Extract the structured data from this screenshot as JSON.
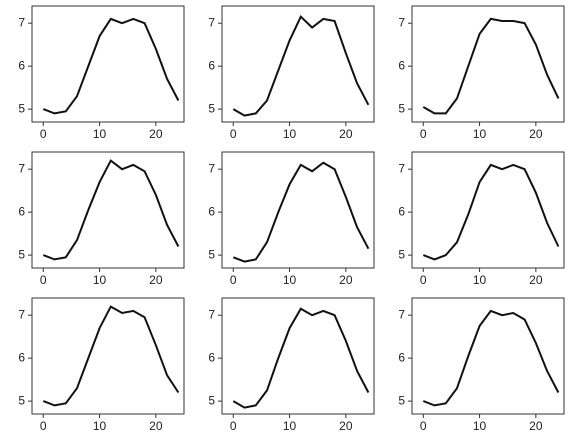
{
  "chart_data": [
    {
      "type": "line",
      "x": [
        0,
        2,
        4,
        6,
        8,
        10,
        12,
        14,
        16,
        18,
        20,
        22,
        24
      ],
      "y": [
        5.0,
        4.9,
        4.95,
        5.3,
        6.0,
        6.7,
        7.1,
        7.0,
        7.1,
        7.0,
        6.4,
        5.7,
        5.2
      ],
      "color": "#111111",
      "xlim": [
        -2,
        25
      ],
      "ylim": [
        4.7,
        7.4
      ],
      "xticks": [
        0,
        10,
        20
      ],
      "yticks": [
        5,
        6,
        7
      ]
    },
    {
      "type": "line",
      "x": [
        0,
        2,
        4,
        6,
        8,
        10,
        12,
        14,
        16,
        18,
        20,
        22,
        24
      ],
      "y": [
        5.0,
        4.85,
        4.9,
        5.2,
        5.9,
        6.6,
        7.15,
        6.9,
        7.1,
        7.05,
        6.3,
        5.6,
        5.1
      ],
      "color": "#111111",
      "xlim": [
        -2,
        25
      ],
      "ylim": [
        4.7,
        7.4
      ],
      "xticks": [
        0,
        10,
        20
      ],
      "yticks": [
        5,
        6,
        7
      ]
    },
    {
      "type": "line",
      "x": [
        0,
        2,
        4,
        6,
        8,
        10,
        12,
        14,
        16,
        18,
        20,
        22,
        24
      ],
      "y": [
        5.05,
        4.9,
        4.9,
        5.25,
        6.0,
        6.75,
        7.1,
        7.05,
        7.05,
        7.0,
        6.5,
        5.8,
        5.25
      ],
      "color": "#111111",
      "xlim": [
        -2,
        25
      ],
      "ylim": [
        4.7,
        7.4
      ],
      "xticks": [
        0,
        10,
        20
      ],
      "yticks": [
        5,
        6,
        7
      ]
    },
    {
      "type": "line",
      "x": [
        0,
        2,
        4,
        6,
        8,
        10,
        12,
        14,
        16,
        18,
        20,
        22,
        24
      ],
      "y": [
        5.0,
        4.9,
        4.95,
        5.35,
        6.05,
        6.7,
        7.2,
        7.0,
        7.1,
        6.95,
        6.4,
        5.7,
        5.2
      ],
      "color": "#111111",
      "xlim": [
        -2,
        25
      ],
      "ylim": [
        4.7,
        7.4
      ],
      "xticks": [
        0,
        10,
        20
      ],
      "yticks": [
        5,
        6,
        7
      ]
    },
    {
      "type": "line",
      "x": [
        0,
        2,
        4,
        6,
        8,
        10,
        12,
        14,
        16,
        18,
        20,
        22,
        24
      ],
      "y": [
        4.95,
        4.85,
        4.9,
        5.3,
        6.0,
        6.65,
        7.1,
        6.95,
        7.15,
        7.0,
        6.35,
        5.65,
        5.15
      ],
      "color": "#111111",
      "xlim": [
        -2,
        25
      ],
      "ylim": [
        4.7,
        7.4
      ],
      "xticks": [
        0,
        10,
        20
      ],
      "yticks": [
        5,
        6,
        7
      ]
    },
    {
      "type": "line",
      "x": [
        0,
        2,
        4,
        6,
        8,
        10,
        12,
        14,
        16,
        18,
        20,
        22,
        24
      ],
      "y": [
        5.0,
        4.9,
        5.0,
        5.3,
        5.95,
        6.7,
        7.1,
        7.0,
        7.1,
        7.0,
        6.45,
        5.75,
        5.2
      ],
      "color": "#111111",
      "xlim": [
        -2,
        25
      ],
      "ylim": [
        4.7,
        7.4
      ],
      "xticks": [
        0,
        10,
        20
      ],
      "yticks": [
        5,
        6,
        7
      ]
    },
    {
      "type": "line",
      "x": [
        0,
        2,
        4,
        6,
        8,
        10,
        12,
        14,
        16,
        18,
        20,
        22,
        24
      ],
      "y": [
        5.0,
        4.9,
        4.95,
        5.3,
        6.0,
        6.7,
        7.2,
        7.05,
        7.1,
        6.95,
        6.3,
        5.6,
        5.2
      ],
      "color": "#111111",
      "xlim": [
        -2,
        25
      ],
      "ylim": [
        4.7,
        7.4
      ],
      "xticks": [
        0,
        10,
        20
      ],
      "yticks": [
        5,
        6,
        7
      ]
    },
    {
      "type": "line",
      "x": [
        0,
        2,
        4,
        6,
        8,
        10,
        12,
        14,
        16,
        18,
        20,
        22,
        24
      ],
      "y": [
        5.0,
        4.85,
        4.9,
        5.25,
        6.0,
        6.7,
        7.15,
        7.0,
        7.1,
        7.0,
        6.4,
        5.7,
        5.2
      ],
      "color": "#111111",
      "xlim": [
        -2,
        25
      ],
      "ylim": [
        4.7,
        7.4
      ],
      "xticks": [
        0,
        10,
        20
      ],
      "yticks": [
        5,
        6,
        7
      ]
    },
    {
      "type": "line",
      "x": [
        0,
        2,
        4,
        6,
        8,
        10,
        12,
        14,
        16,
        18,
        20,
        22,
        24
      ],
      "y": [
        5.0,
        4.9,
        4.95,
        5.3,
        6.05,
        6.75,
        7.1,
        7.0,
        7.05,
        6.9,
        6.35,
        5.7,
        5.2
      ],
      "color": "#111111",
      "xlim": [
        -2,
        25
      ],
      "ylim": [
        4.7,
        7.4
      ],
      "xticks": [
        0,
        10,
        20
      ],
      "yticks": [
        5,
        6,
        7
      ]
    }
  ]
}
